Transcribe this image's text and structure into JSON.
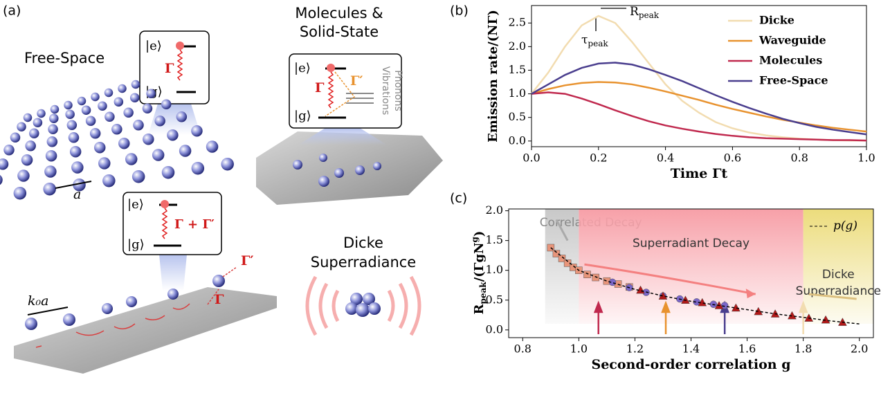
{
  "panel_labels": [
    "(a)",
    "(b)",
    "(c)"
  ],
  "illustration": {
    "free_space": {
      "title": "Free-Space",
      "spacing": "a",
      "levels": [
        "|e⟩",
        "|g⟩"
      ],
      "rate": "Γ"
    },
    "molecules": {
      "title": [
        "Molecules &",
        "Solid-State"
      ],
      "levels": [
        "|e⟩",
        "|g⟩"
      ],
      "rate": "Γ",
      "rate2": "Γ′",
      "side": [
        "Vibrations",
        "Phonons"
      ]
    },
    "waveguide": {
      "levels": [
        "|e⟩",
        "|g⟩"
      ],
      "rate": "Γ + Γ′",
      "spacing": "k₀a",
      "emission": [
        "Γ′",
        "Γ"
      ]
    },
    "dicke": {
      "title": [
        "Dicke",
        "Superradiance"
      ]
    }
  },
  "chart_data": [
    {
      "type": "line",
      "xlabel": "Time Γt",
      "ylabel": "Emission rate/(NΓ)",
      "annotations": [
        {
          "text": "R",
          "sub": "peak"
        },
        {
          "text": "τ",
          "sub": "peak"
        }
      ],
      "x": [
        0,
        0.05,
        0.1,
        0.15,
        0.2,
        0.25,
        0.3,
        0.35,
        0.4,
        0.45,
        0.5,
        0.55,
        0.6,
        0.65,
        0.7,
        0.75,
        0.8,
        0.85,
        0.9,
        0.95,
        1
      ],
      "series": [
        {
          "name": "Dicke",
          "color": "#f2dcb0",
          "values": [
            1.0,
            1.45,
            2.0,
            2.45,
            2.65,
            2.5,
            2.1,
            1.65,
            1.2,
            0.85,
            0.6,
            0.4,
            0.27,
            0.18,
            0.12,
            0.08,
            0.05,
            0.03,
            0.02,
            0.01,
            0.01
          ]
        },
        {
          "name": "Waveguide",
          "color": "#e8922e",
          "values": [
            1.0,
            1.1,
            1.18,
            1.23,
            1.25,
            1.24,
            1.2,
            1.13,
            1.05,
            0.96,
            0.87,
            0.77,
            0.68,
            0.6,
            0.52,
            0.45,
            0.39,
            0.33,
            0.28,
            0.24,
            0.2
          ]
        },
        {
          "name": "Molecules",
          "color": "#c0294e",
          "values": [
            1.0,
            1.03,
            1.0,
            0.9,
            0.78,
            0.65,
            0.53,
            0.42,
            0.33,
            0.26,
            0.2,
            0.15,
            0.11,
            0.08,
            0.06,
            0.05,
            0.04,
            0.03,
            0.02,
            0.02,
            0.01
          ]
        },
        {
          "name": "Free-Space",
          "color": "#4a3e8e",
          "values": [
            1.0,
            1.2,
            1.4,
            1.55,
            1.64,
            1.66,
            1.62,
            1.52,
            1.4,
            1.27,
            1.12,
            0.97,
            0.83,
            0.7,
            0.58,
            0.47,
            0.38,
            0.3,
            0.24,
            0.19,
            0.14
          ]
        }
      ],
      "xlim": [
        0,
        1
      ],
      "xticks": [
        {
          "value": 0,
          "label": "0.0"
        },
        0.2,
        0.4,
        0.6,
        0.8,
        {
          "value": 1,
          "label": "1.0"
        }
      ],
      "ylim": [
        -0.12,
        2.87
      ],
      "yticks": [
        {
          "value": 0,
          "label": "0.0"
        },
        0.5,
        {
          "value": 1,
          "label": "1.0"
        },
        1.5,
        {
          "value": 2,
          "label": "2.0"
        },
        2.5
      ],
      "legend": "upper right"
    },
    {
      "type": "scatter",
      "xlabel": "Second-order correlation g",
      "ylabel": {
        "parts": [
          "R",
          "peak",
          "/(Γg",
          "N",
          "g",
          ")"
        ]
      },
      "regions": [
        {
          "label": [
            "Correlated Decay"
          ],
          "x": [
            0.88,
            1.0
          ],
          "color": "#c8c8c8"
        },
        {
          "label": [
            "Superradiant Decay"
          ],
          "x": [
            1.0,
            1.8
          ],
          "color": "#f7a0a8"
        },
        {
          "label": [
            "Dicke",
            "Superradiance"
          ],
          "x": [
            1.8,
            2.05
          ],
          "color": "#ecdc7c"
        }
      ],
      "arrows": [
        {
          "x": 1.07,
          "color": "#c0294e"
        },
        {
          "x": 1.31,
          "color": "#e8922e"
        },
        {
          "x": 1.52,
          "color": "#4a3e8e"
        },
        {
          "x": 1.8,
          "color": "#f2dcb0"
        }
      ],
      "series": [
        {
          "marker": "square",
          "color": "#e8957a",
          "x": [
            0.9,
            0.92,
            0.94,
            0.96,
            0.98,
            1.0,
            1.03,
            1.06,
            1.1,
            1.14,
            1.18
          ],
          "y": [
            1.38,
            1.28,
            1.2,
            1.12,
            1.05,
            1.0,
            0.93,
            0.88,
            0.82,
            0.77,
            0.72
          ]
        },
        {
          "marker": "circle",
          "color": "#7a66c8",
          "x": [
            1.12,
            1.18,
            1.24,
            1.3,
            1.36,
            1.42,
            1.48,
            1.52
          ],
          "y": [
            0.8,
            0.71,
            0.63,
            0.57,
            0.52,
            0.47,
            0.43,
            0.41
          ]
        },
        {
          "marker": "triangle",
          "color": "#b01818",
          "x": [
            1.22,
            1.3,
            1.38,
            1.44,
            1.5,
            1.56,
            1.64,
            1.7,
            1.76,
            1.82,
            1.88,
            1.94
          ],
          "y": [
            0.67,
            0.57,
            0.5,
            0.46,
            0.41,
            0.37,
            0.31,
            0.27,
            0.24,
            0.2,
            0.17,
            0.13
          ]
        },
        {
          "name": "p(g)",
          "color": "#000000",
          "x": [
            0.9,
            1.0,
            1.1,
            1.2,
            1.3,
            1.4,
            1.5,
            1.6,
            1.7,
            1.8,
            1.9,
            2.0
          ],
          "y": [
            1.38,
            1.0,
            0.82,
            0.68,
            0.57,
            0.48,
            0.41,
            0.34,
            0.27,
            0.21,
            0.15,
            0.1
          ]
        }
      ],
      "xlim": [
        0.75,
        2.05
      ],
      "xticks": [
        0.8,
        {
          "value": 1,
          "label": "1.0"
        },
        1.2,
        1.4,
        1.6,
        1.8,
        {
          "value": 2,
          "label": "2.0"
        }
      ],
      "ylim": [
        -0.13,
        2.03
      ],
      "yticks": [
        {
          "value": 0,
          "label": "0.0"
        },
        0.5,
        {
          "value": 1,
          "label": "1.0"
        },
        1.5,
        {
          "value": 2,
          "label": "2.0"
        }
      ]
    }
  ]
}
